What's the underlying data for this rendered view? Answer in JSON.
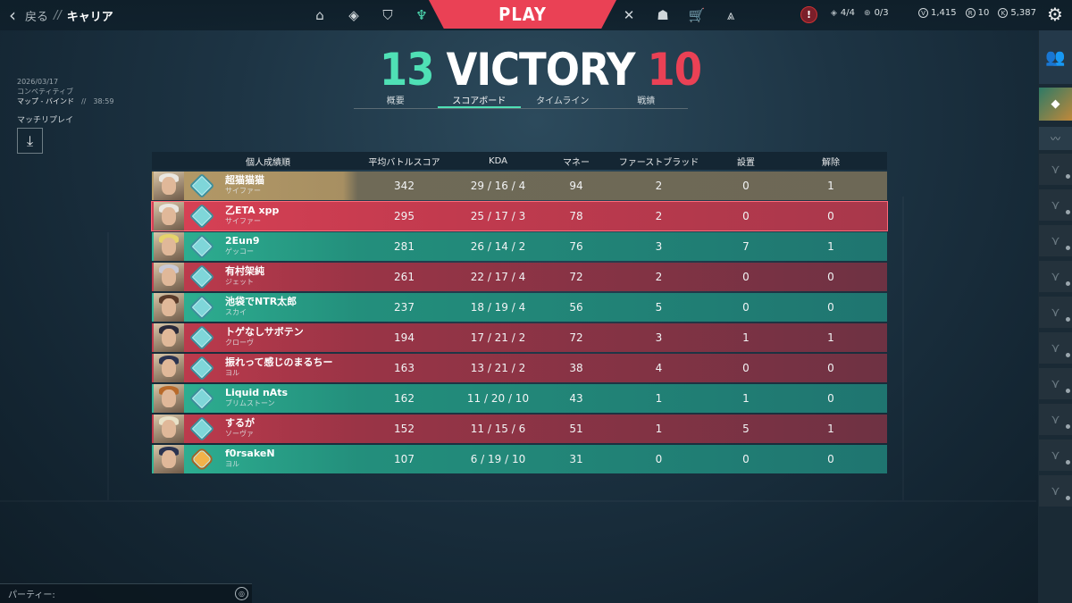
{
  "topbar": {
    "back_label": "戻る",
    "separator": "//",
    "breadcrumb": "キャリア",
    "play_label": "PLAY",
    "alert_label": "!",
    "stats": [
      {
        "icon": "radianite-icon",
        "value": "4/4"
      },
      {
        "icon": "plus-icon",
        "value": "0/3"
      }
    ],
    "currency": [
      {
        "icon": "vp-icon",
        "symbol": "V",
        "value": "1,415"
      },
      {
        "icon": "radianite-points-icon",
        "symbol": "R",
        "value": "10"
      },
      {
        "icon": "kingdom-credits-icon",
        "symbol": "K",
        "value": "5,387"
      }
    ]
  },
  "match": {
    "date": "2026/03/17",
    "mode": "コンペティティブ",
    "map": "マップ - バインド",
    "separator": "//",
    "duration": "38:59",
    "replay_label": "マッチリプレイ"
  },
  "result": {
    "score_win": "13",
    "label": "VICTORY",
    "score_lose": "10"
  },
  "tabs": [
    {
      "label": "概要",
      "active": false
    },
    {
      "label": "スコアボード",
      "active": true
    },
    {
      "label": "タイムライン",
      "active": false
    },
    {
      "label": "戦績",
      "active": false
    }
  ],
  "scoreboard": {
    "headers": {
      "player": "個人成績順",
      "acs": "平均バトルスコア",
      "kda": "KDA",
      "money": "マネー",
      "first_blood": "ファーストブラッド",
      "plants": "設置",
      "defuses": "解除"
    },
    "rows": [
      {
        "team": "gold",
        "name": "超猫猫猫",
        "agent": "サイファー",
        "acs": "342",
        "kda": "29 / 16 / 4",
        "money": "94",
        "fb": "2",
        "plants": "0",
        "defuses": "1"
      },
      {
        "team": "self",
        "name": "乙ETA xpp",
        "agent": "サイファー",
        "acs": "295",
        "kda": "25 / 17 / 3",
        "money": "78",
        "fb": "2",
        "plants": "0",
        "defuses": "0"
      },
      {
        "team": "green",
        "name": "2Eun9",
        "agent": "ゲッコー",
        "acs": "281",
        "kda": "26 / 14 / 2",
        "money": "76",
        "fb": "3",
        "plants": "7",
        "defuses": "1"
      },
      {
        "team": "red",
        "name": "有村架純",
        "agent": "ジェット",
        "acs": "261",
        "kda": "22 / 17 / 4",
        "money": "72",
        "fb": "2",
        "plants": "0",
        "defuses": "0"
      },
      {
        "team": "green",
        "name": "池袋でNTR太郎",
        "agent": "スカイ",
        "acs": "237",
        "kda": "18 / 19 / 4",
        "money": "56",
        "fb": "5",
        "plants": "0",
        "defuses": "0"
      },
      {
        "team": "red",
        "name": "トゲなしサボテン",
        "agent": "クローヴ",
        "acs": "194",
        "kda": "17 / 21 / 2",
        "money": "72",
        "fb": "3",
        "plants": "1",
        "defuses": "1"
      },
      {
        "team": "red",
        "name": "振れって感じのまるちー",
        "agent": "ヨル",
        "acs": "163",
        "kda": "13 / 21 / 2",
        "money": "38",
        "fb": "4",
        "plants": "0",
        "defuses": "0"
      },
      {
        "team": "green",
        "name": "Liquid nAts",
        "agent": "ブリムストーン",
        "acs": "162",
        "kda": "11 / 20 / 10",
        "money": "43",
        "fb": "1",
        "plants": "1",
        "defuses": "0"
      },
      {
        "team": "red",
        "name": "するが",
        "agent": "ソーヴァ",
        "acs": "152",
        "kda": "11 / 15 / 6",
        "money": "51",
        "fb": "1",
        "plants": "5",
        "defuses": "1"
      },
      {
        "team": "green",
        "name": "f0rsakeN",
        "agent": "ヨル",
        "acs": "107",
        "kda": "6 / 19 / 10",
        "money": "31",
        "fb": "0",
        "plants": "0",
        "defuses": "0"
      }
    ]
  },
  "party": {
    "label": "パーティー:"
  },
  "colors": {
    "win": "#4fe0b5",
    "lose": "#ea4155",
    "gold_row": "#b49a67",
    "green_row": "#2fb394",
    "red_row": "#9a3446"
  }
}
